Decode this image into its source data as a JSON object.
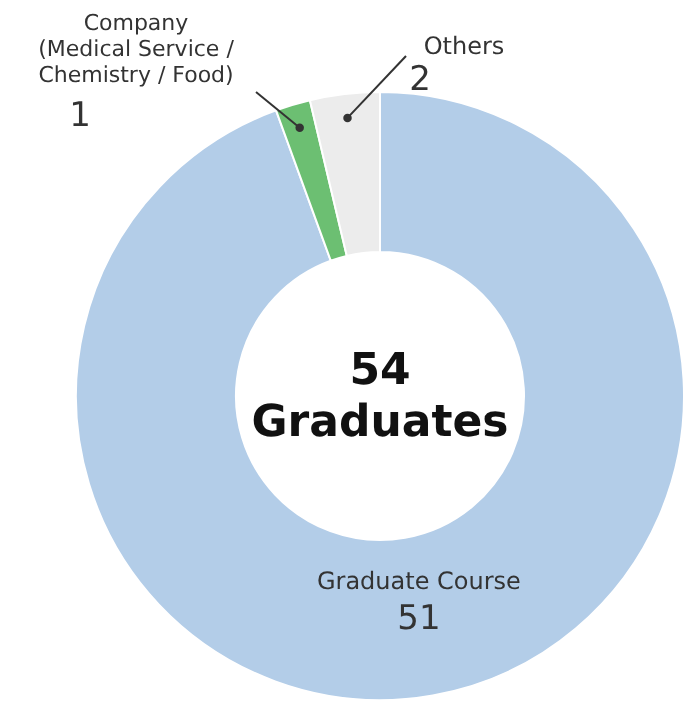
{
  "chart_data": {
    "type": "donut",
    "title": "54\nGraduates",
    "categories": [
      "Graduate Course",
      "Company\n(Medical Service /\nChemistry / Food)",
      "Others"
    ],
    "values": [
      51,
      1,
      2
    ],
    "colors": [
      "#b3cde8",
      "#6cbf72",
      "#ececec"
    ],
    "data_labels": true
  }
}
